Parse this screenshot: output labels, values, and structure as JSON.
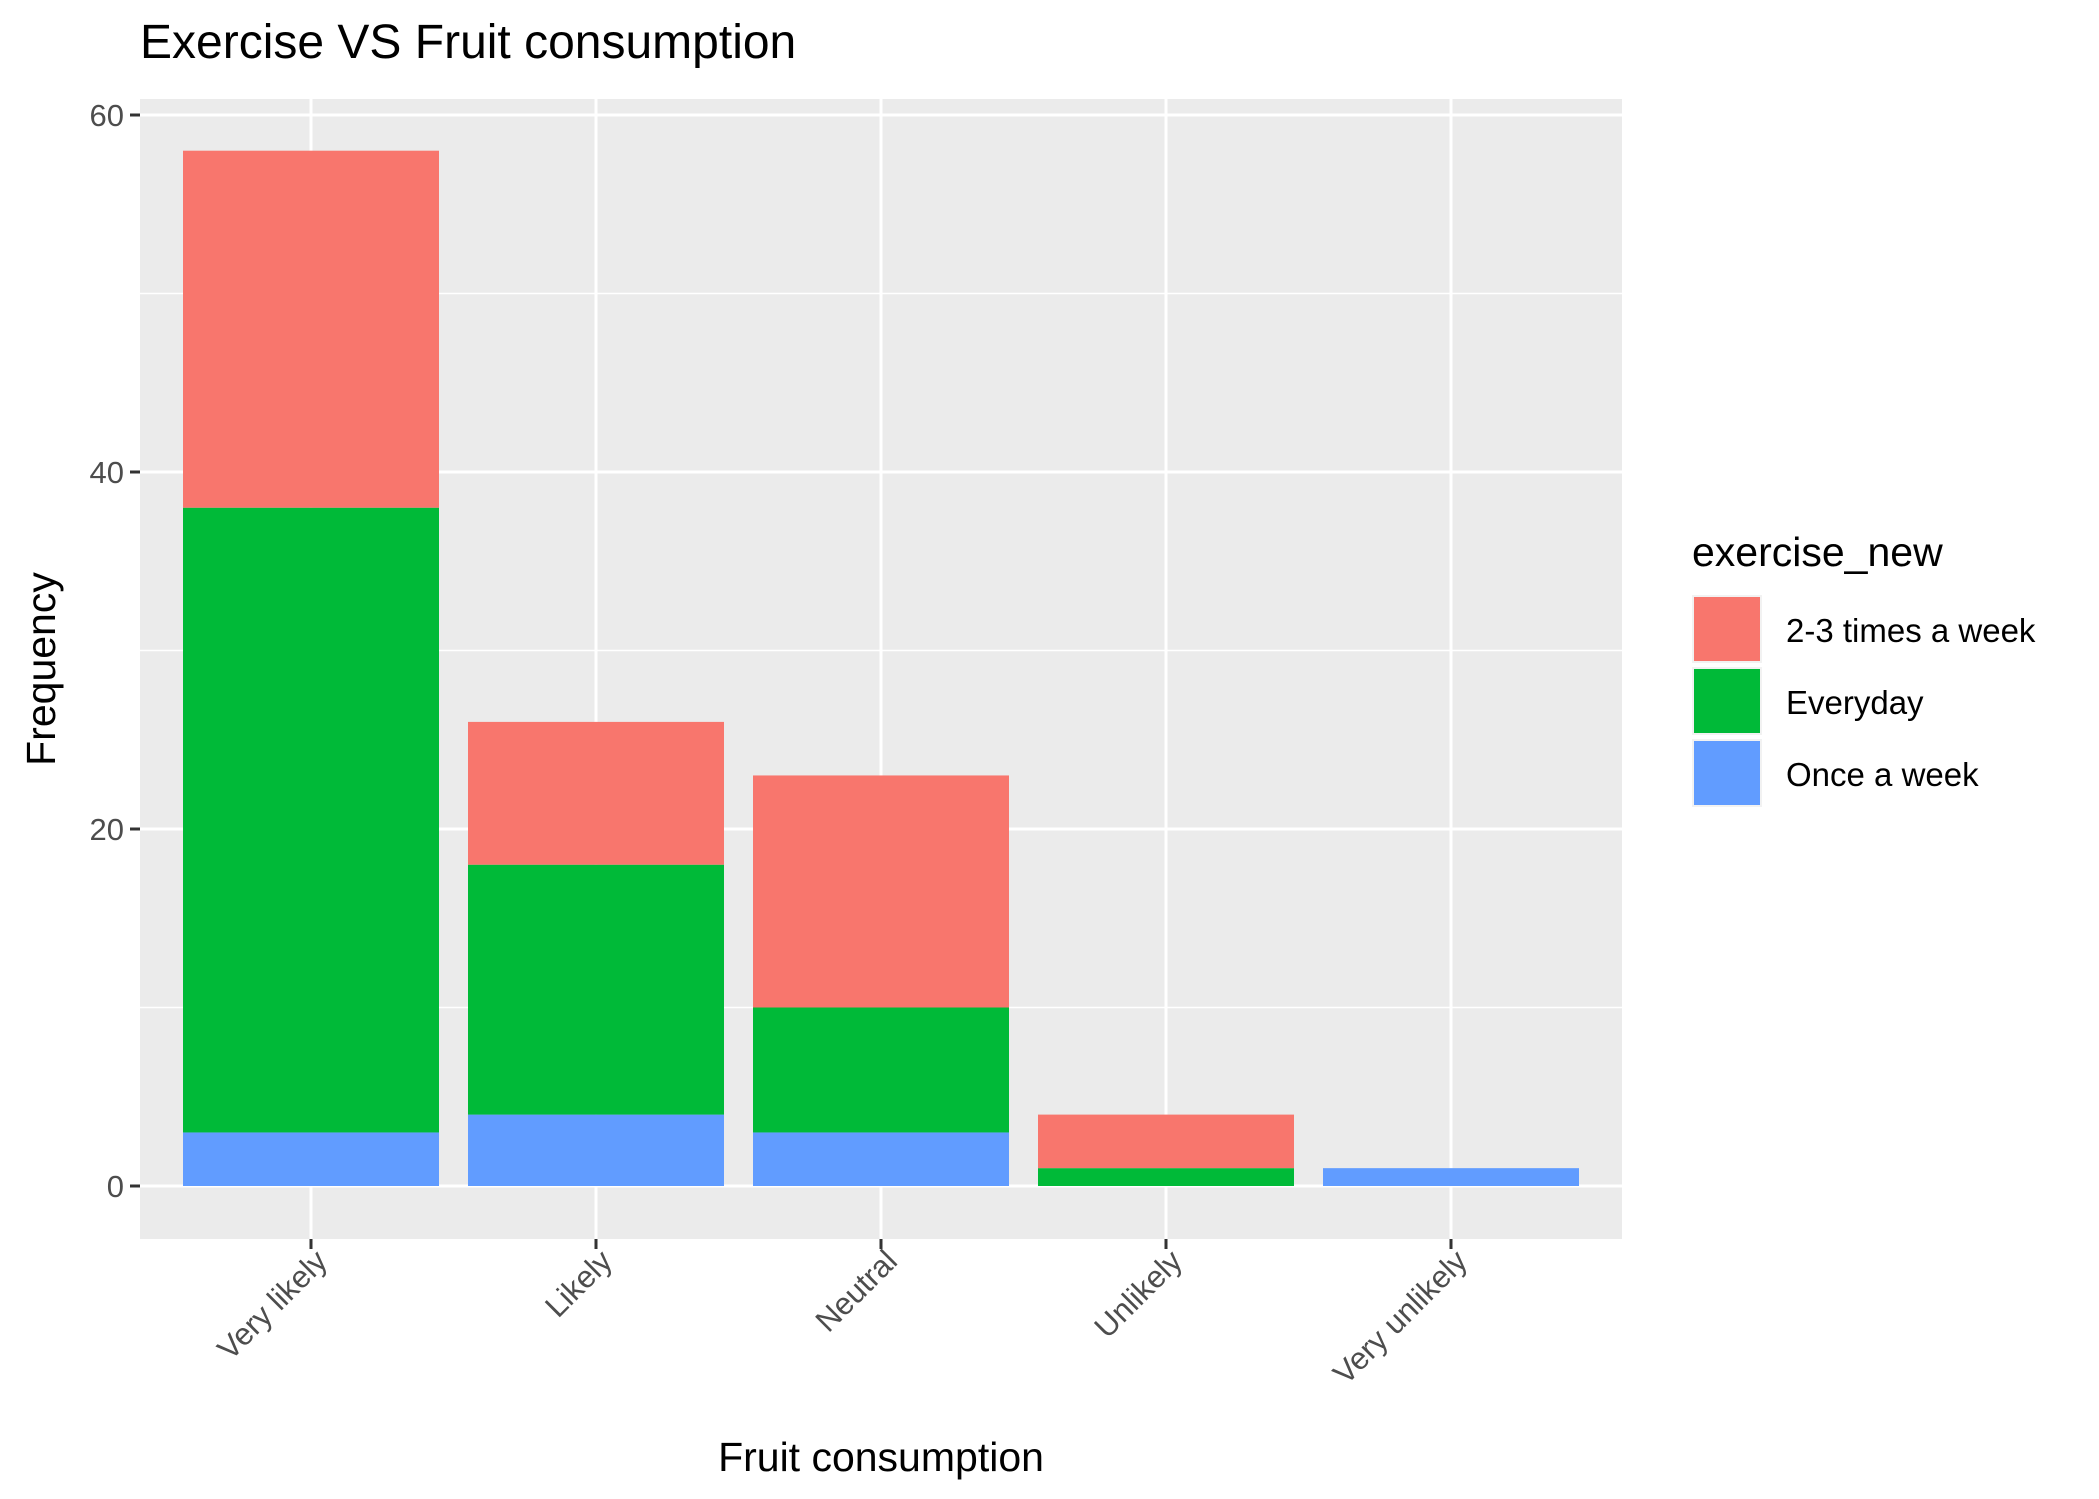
{
  "chart_data": {
    "type": "bar",
    "stacked": true,
    "title": "Exercise VS Fruit consumption",
    "xlabel": "Fruit consumption",
    "ylabel": "Frequency",
    "categories": [
      "Very likely",
      "Likely",
      "Neutral",
      "Unlikely",
      "Very unlikely"
    ],
    "series": [
      {
        "name": "Once a week",
        "color": "#619CFF",
        "values": [
          3,
          4,
          3,
          0,
          1
        ]
      },
      {
        "name": "Everyday",
        "color": "#00BA38",
        "values": [
          35,
          14,
          7,
          1,
          0
        ]
      },
      {
        "name": "2-3 times a week",
        "color": "#F8766D",
        "values": [
          20,
          8,
          13,
          3,
          0
        ]
      }
    ],
    "ylim": [
      0,
      60
    ],
    "yticks": [
      0,
      20,
      40,
      60
    ],
    "grid": true,
    "panel_background": "#EBEBEB",
    "legend": {
      "title": "exercise_new",
      "placement": "right",
      "order": [
        "2-3 times a week",
        "Everyday",
        "Once a week"
      ]
    }
  }
}
